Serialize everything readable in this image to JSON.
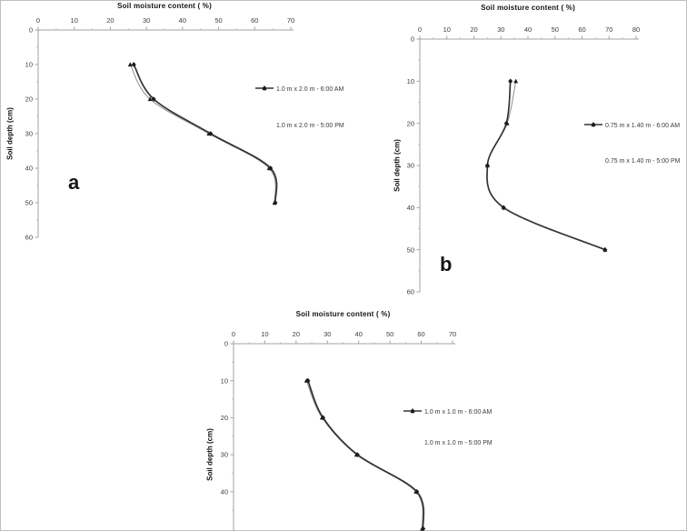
{
  "figure": {
    "background": "#ffffff",
    "border_color": "#bfbfbf",
    "axis_color": "#a3a3a3",
    "tick_label_color": "#3d3d3d",
    "title_color": "#151515",
    "am_line_color": "#8f8f8f",
    "pm_line_color": "#343434",
    "marker_color": "#1c1c1c"
  },
  "chart_data": [
    {
      "id": "a",
      "type": "line",
      "panel_label": "a",
      "xlabel": "Soil moisture content ( %)",
      "ylabel": "Soil depth (cm)",
      "xlim": [
        0,
        70
      ],
      "xticks": [
        0,
        10,
        20,
        30,
        40,
        50,
        60,
        70
      ],
      "ylim": [
        0,
        60
      ],
      "yticks": [
        0,
        10,
        20,
        30,
        40,
        50,
        60
      ],
      "grid": false,
      "legend_position": "right",
      "series": [
        {
          "name": "1.0 m x 2.0 m - 6:00 AM",
          "marker": "triangle",
          "style": "dashed-thin",
          "points": [
            [
              25.5,
              10
            ],
            [
              31,
              20
            ],
            [
              47.3,
              30
            ],
            [
              64,
              40
            ],
            [
              65.5,
              50
            ]
          ]
        },
        {
          "name": "1.0 m x 2.0 m - 5:00 PM",
          "marker": "diamond",
          "style": "solid-thick",
          "points": [
            [
              26.5,
              10
            ],
            [
              32,
              20
            ],
            [
              47.8,
              30
            ],
            [
              64.4,
              40
            ],
            [
              65.7,
              50
            ]
          ]
        }
      ]
    },
    {
      "id": "b",
      "type": "line",
      "panel_label": "b",
      "xlabel": "Soil moisture content ( %)",
      "ylabel": "Soil depth (cm)",
      "xlim": [
        0,
        80
      ],
      "xticks": [
        0,
        10,
        20,
        30,
        40,
        50,
        60,
        70,
        80
      ],
      "ylim": [
        0,
        60
      ],
      "yticks": [
        0,
        10,
        20,
        30,
        40,
        50,
        60
      ],
      "grid": false,
      "legend_position": "right",
      "series": [
        {
          "name": "0.75 m x 1.40 m - 6:00 AM",
          "marker": "triangle",
          "style": "dashed-thin",
          "points": [
            [
              35.5,
              10
            ],
            [
              32.3,
              20
            ],
            [
              25,
              30
            ],
            [
              31,
              40
            ],
            [
              68.5,
              50
            ]
          ]
        },
        {
          "name": "0.75 m x 1.40 m - 5:00 PM",
          "marker": "diamond",
          "style": "solid-thick",
          "points": [
            [
              33.5,
              10
            ],
            [
              32,
              20
            ],
            [
              25,
              30
            ],
            [
              31,
              40
            ],
            [
              68.5,
              50
            ]
          ]
        }
      ]
    },
    {
      "id": "c",
      "type": "line",
      "xlabel": "Soil moisture content ( %)",
      "ylabel": "Soil depth (cm)",
      "xlim": [
        0,
        70
      ],
      "xticks": [
        0,
        10,
        20,
        30,
        40,
        50,
        60,
        70
      ],
      "ylim": [
        0,
        60
      ],
      "yticks": [
        0,
        10,
        20,
        30,
        40
      ],
      "grid": false,
      "legend_position": "right",
      "series": [
        {
          "name": "1.0 m x 1.0 m - 6:00 AM",
          "marker": "triangle",
          "style": "dashed-thin",
          "points": [
            [
              23.3,
              10
            ],
            [
              28.3,
              20
            ],
            [
              39.3,
              30
            ],
            [
              58.3,
              40
            ],
            [
              60.3,
              50
            ]
          ]
        },
        {
          "name": "1.0 m x 1.0 m - 5:00 PM",
          "marker": "diamond",
          "style": "solid-thick",
          "points": [
            [
              23.8,
              10
            ],
            [
              28.6,
              20
            ],
            [
              39.6,
              30
            ],
            [
              58.6,
              40
            ],
            [
              60.6,
              50
            ]
          ]
        }
      ]
    }
  ]
}
